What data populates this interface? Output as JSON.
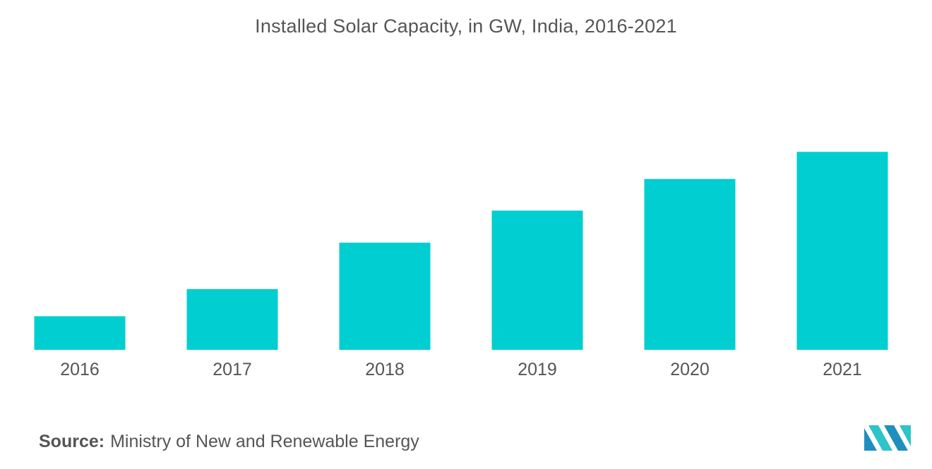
{
  "chart_data": {
    "type": "bar",
    "title": "Installed Solar Capacity, in GW, India, 2016-2021",
    "categories": [
      "2016",
      "2017",
      "2018",
      "2019",
      "2020",
      "2021"
    ],
    "values": [
      6.8,
      12.3,
      21.7,
      28.2,
      34.6,
      40.1
    ],
    "xlabel": "",
    "ylabel": "",
    "ylim": [
      0,
      60
    ],
    "grid": false,
    "legend": "none",
    "bar_color": "#00ced1"
  },
  "source": {
    "label": "Source:",
    "text": "Ministry of New and Renewable Energy"
  },
  "logo": {
    "colors": [
      "#1f8fbd",
      "#2ec4c8"
    ]
  }
}
